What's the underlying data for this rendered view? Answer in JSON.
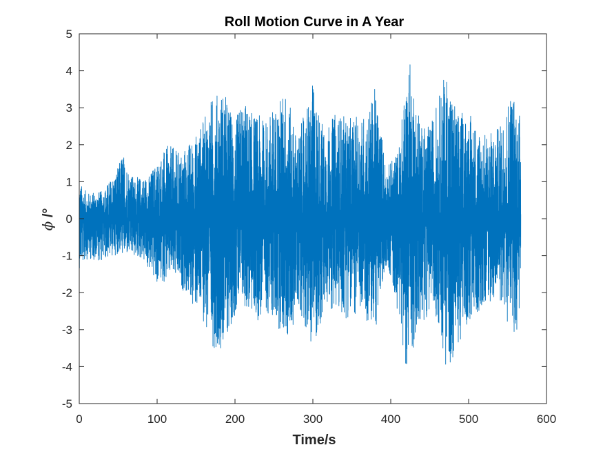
{
  "chart_data": {
    "type": "line",
    "title": "Roll Motion Curve in A Year",
    "xlabel": "Time/s",
    "ylabel_symbol": "ϕ",
    "ylabel_unit": " /°",
    "xlim": [
      0,
      600
    ],
    "ylim": [
      -5,
      5
    ],
    "xticks": [
      0,
      100,
      200,
      300,
      400,
      500,
      600
    ],
    "yticks": [
      -5,
      -4,
      -3,
      -2,
      -1,
      0,
      1,
      2,
      3,
      4,
      5
    ],
    "xtick_labels": [
      "0",
      "100",
      "200",
      "300",
      "400",
      "500",
      "600"
    ],
    "ytick_labels": [
      "-5",
      "-4",
      "-3",
      "-2",
      "-1",
      "0",
      "1",
      "2",
      "3",
      "4",
      "5"
    ],
    "grid": false,
    "series": [
      {
        "color": "#0072BD",
        "x_range": [
          0,
          567
        ],
        "envelope_max": [
          [
            0,
            1.0
          ],
          [
            10,
            0.7
          ],
          [
            30,
            0.75
          ],
          [
            50,
            1.4
          ],
          [
            55,
            1.85
          ],
          [
            70,
            1.1
          ],
          [
            90,
            1.2
          ],
          [
            100,
            1.6
          ],
          [
            115,
            2.0
          ],
          [
            130,
            1.8
          ],
          [
            150,
            2.3
          ],
          [
            160,
            2.7
          ],
          [
            170,
            3.3
          ],
          [
            185,
            3.55
          ],
          [
            200,
            2.6
          ],
          [
            210,
            3.3
          ],
          [
            220,
            2.9
          ],
          [
            240,
            2.7
          ],
          [
            265,
            3.55
          ],
          [
            280,
            2.2
          ],
          [
            300,
            3.65
          ],
          [
            315,
            2.4
          ],
          [
            330,
            2.9
          ],
          [
            350,
            2.7
          ],
          [
            370,
            2.9
          ],
          [
            380,
            3.55
          ],
          [
            395,
            1.4
          ],
          [
            410,
            1.9
          ],
          [
            423,
            4.45
          ],
          [
            440,
            2.5
          ],
          [
            450,
            2.5
          ],
          [
            472,
            4.1
          ],
          [
            485,
            2.9
          ],
          [
            500,
            2.9
          ],
          [
            520,
            2.3
          ],
          [
            540,
            2.5
          ],
          [
            555,
            3.65
          ],
          [
            567,
            2.8
          ]
        ],
        "envelope_min": [
          [
            0,
            -1.35
          ],
          [
            10,
            -1.1
          ],
          [
            30,
            -1.15
          ],
          [
            50,
            -0.95
          ],
          [
            60,
            -1.0
          ],
          [
            80,
            -1.1
          ],
          [
            100,
            -1.8
          ],
          [
            120,
            -1.6
          ],
          [
            135,
            -2.0
          ],
          [
            150,
            -2.5
          ],
          [
            160,
            -2.8
          ],
          [
            167,
            -3.5
          ],
          [
            185,
            -3.5
          ],
          [
            200,
            -2.6
          ],
          [
            210,
            -2.4
          ],
          [
            230,
            -2.8
          ],
          [
            240,
            -2.5
          ],
          [
            270,
            -3.4
          ],
          [
            280,
            -2.3
          ],
          [
            300,
            -3.5
          ],
          [
            320,
            -2.4
          ],
          [
            340,
            -2.7
          ],
          [
            360,
            -2.6
          ],
          [
            380,
            -3.1
          ],
          [
            395,
            -1.2
          ],
          [
            410,
            -2.6
          ],
          [
            420,
            -4.05
          ],
          [
            440,
            -2.9
          ],
          [
            455,
            -2.3
          ],
          [
            473,
            -4.25
          ],
          [
            485,
            -3.5
          ],
          [
            500,
            -2.9
          ],
          [
            520,
            -2.3
          ],
          [
            540,
            -2.2
          ],
          [
            557,
            -3.3
          ],
          [
            567,
            -2.8
          ]
        ]
      }
    ]
  }
}
